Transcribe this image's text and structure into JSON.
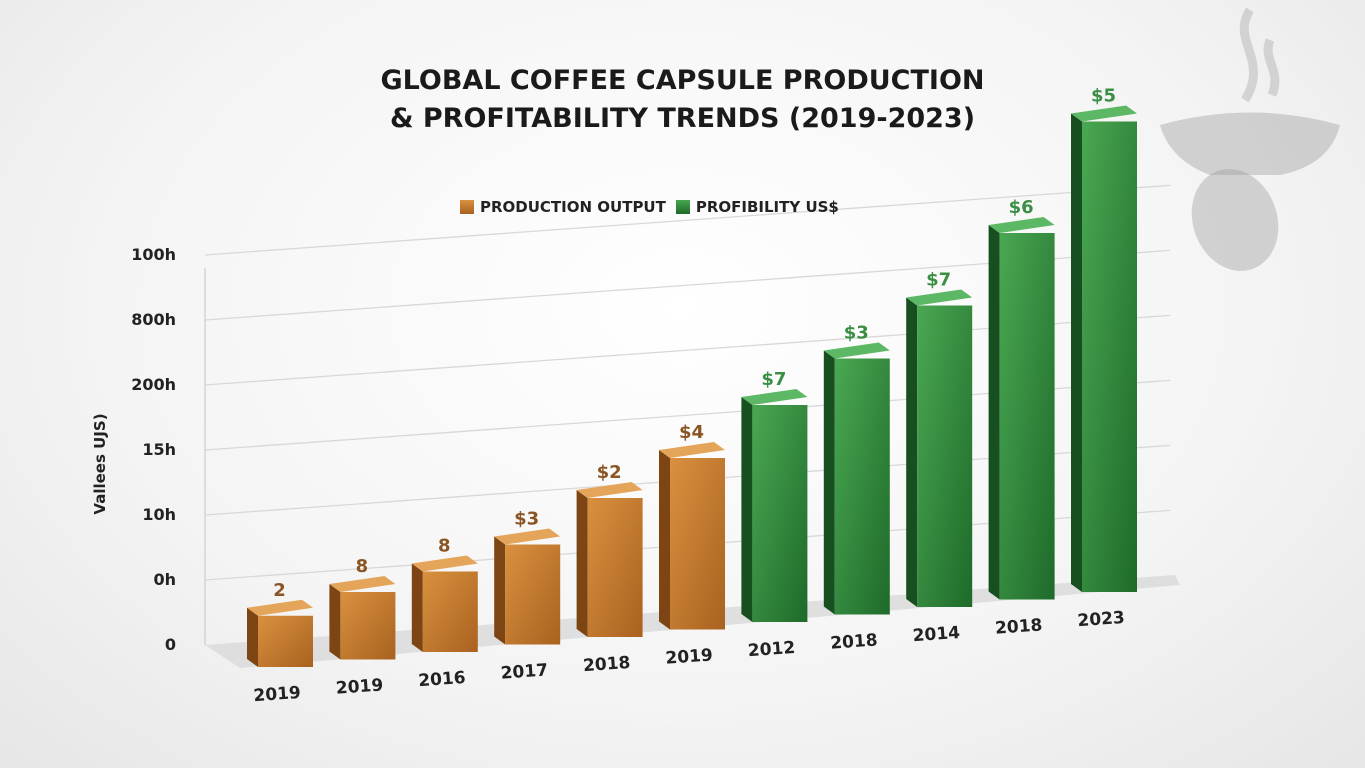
{
  "chart_data": {
    "type": "bar",
    "title_lines": [
      "GLOBAL COFFEE CAPSULE PRODUCTION",
      "& PROFITABILITY TRENDS (2019-2023)"
    ],
    "ylabel": "Vallees UJS)",
    "y_ticks": [
      "0",
      "0h",
      "10h",
      "15h",
      "200h",
      "800h",
      "100h"
    ],
    "legend": [
      {
        "name": "PRODUCTION OUTPUT",
        "color": "#c47a2e"
      },
      {
        "name": "PROFIBILITY US$",
        "color": "#2e8b3a"
      }
    ],
    "legend_position": "top-center",
    "grid": true,
    "style": "3d",
    "categories": [
      "2019",
      "2019",
      "2016",
      "2017",
      "2018",
      "2019",
      "2012",
      "2018",
      "2014",
      "2018",
      "2023"
    ],
    "bars": [
      {
        "category": "2019",
        "label": "2",
        "series": 0,
        "level": 0.85
      },
      {
        "category": "2019",
        "label": "8",
        "series": 0,
        "level": 1.1
      },
      {
        "category": "2016",
        "label": "8",
        "series": 0,
        "level": 1.3
      },
      {
        "category": "2017",
        "label": "$3",
        "series": 0,
        "level": 1.6
      },
      {
        "category": "2018",
        "label": "$2",
        "series": 0,
        "level": 2.2
      },
      {
        "category": "2019",
        "label": "$4",
        "series": 0,
        "level": 2.7
      },
      {
        "category": "2012",
        "label": "$7",
        "series": 1,
        "level": 3.4
      },
      {
        "category": "2018",
        "label": "$3",
        "series": 1,
        "level": 4.0
      },
      {
        "category": "2014",
        "label": "$7",
        "series": 1,
        "level": 4.7
      },
      {
        "category": "2018",
        "label": "$6",
        "series": 1,
        "level": 5.7
      },
      {
        "category": "2023",
        "label": "$5",
        "series": 1,
        "level": 7.3
      }
    ],
    "level_note_units": "y tick index"
  },
  "decoration": {
    "icon": "coffee-cup-icon"
  }
}
